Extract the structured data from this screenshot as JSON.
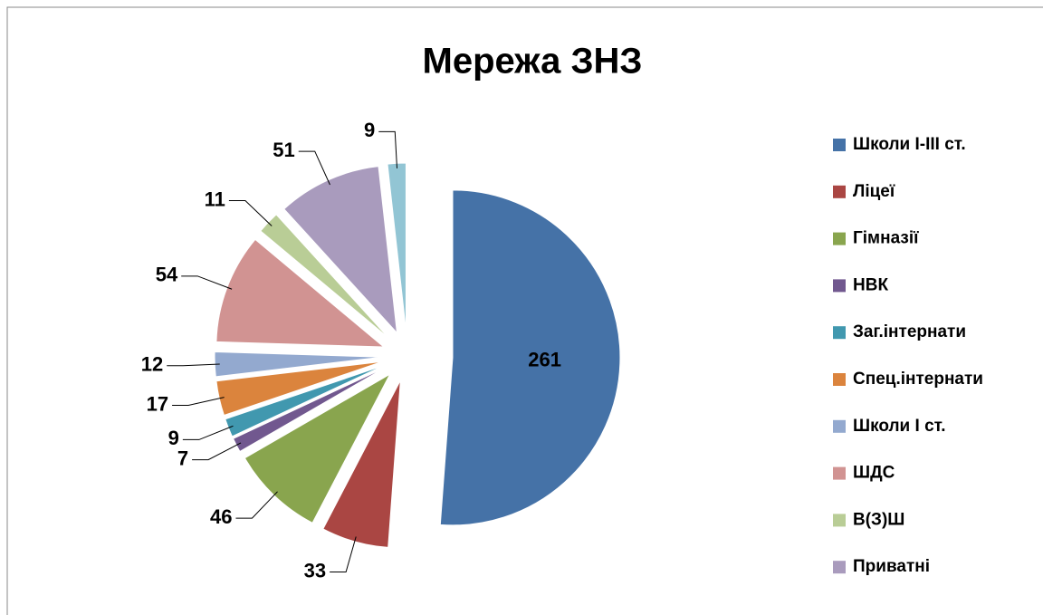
{
  "chart_data": {
    "type": "pie",
    "title": "Мережа ЗНЗ",
    "categories": [
      "Школи І-ІІІ ст.",
      "Ліцеї",
      "Гімназії",
      "НВК",
      "Заг.інтернати",
      "Спец.інтернати",
      "Школи І ст.",
      "ШДС",
      "В(З)Ш",
      "Приватні",
      null
    ],
    "values": [
      261,
      33,
      46,
      7,
      9,
      17,
      12,
      54,
      11,
      51,
      9
    ],
    "colors": [
      "#4572A7",
      "#AA4643",
      "#89A54E",
      "#71588F",
      "#4198AF",
      "#DB843D",
      "#93A9CF",
      "#D19392",
      "#B9CD96",
      "#A99BBD",
      "#92C5D4"
    ],
    "legend": "right"
  }
}
